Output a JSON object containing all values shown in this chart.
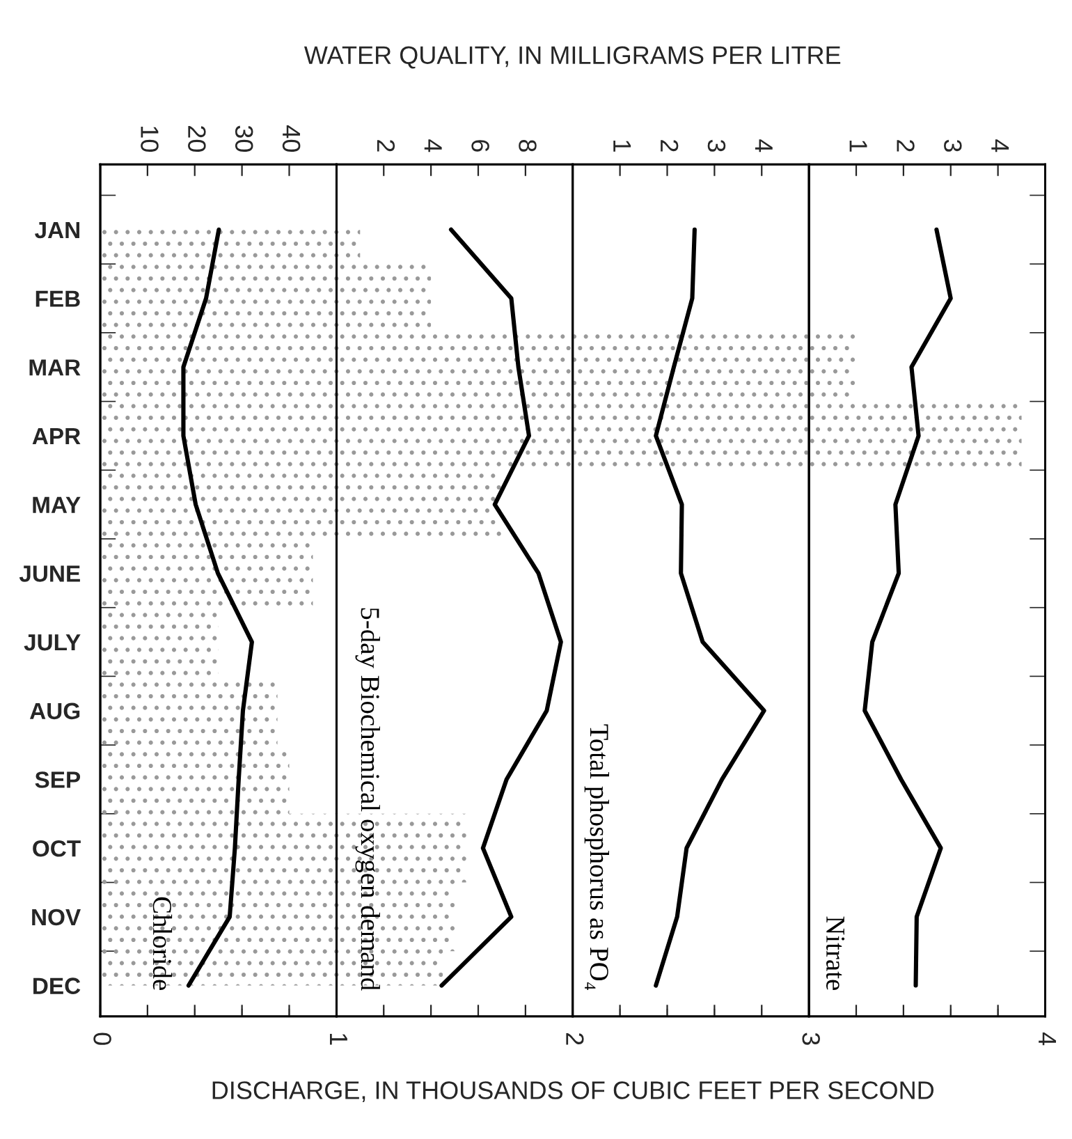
{
  "chart_data": [
    {
      "type": "area",
      "title": "WATER QUALITY, IN MILLIGRAMS PER LITRE",
      "xlabel": "DISCHARGE, IN THOUSANDS OF CUBIC FEET PER SECOND",
      "orientation": "horizontal",
      "categories": [
        "JAN",
        "FEB",
        "MAR",
        "APR",
        "MAY",
        "JUNE",
        "JULY",
        "AUG",
        "SEP",
        "OCT",
        "NOV",
        "DEC"
      ],
      "series": [
        {
          "color": "#999999",
          "values": [
            1.1,
            1.4,
            3.2,
            3.9,
            1.7,
            0.9,
            0.5,
            0.75,
            0.8,
            1.55,
            1.5,
            1.45
          ]
        }
      ],
      "xlim": [
        0,
        4
      ],
      "xticks": [
        0,
        1,
        2,
        3,
        4
      ],
      "grid": "x"
    },
    {
      "type": "line",
      "orientation": "horizontal",
      "tick_labels": "x",
      "series": [
        {
          "name": "Chloride",
          "color": "#000000",
          "values": [
            25.1,
            22.4,
            17.6,
            17.6,
            20.2,
            24.9,
            32.1,
            30.2,
            29.3,
            28.5,
            27.4,
            18.7
          ]
        }
      ],
      "xlim": [
        0,
        50
      ],
      "xticks": [
        10,
        20,
        30,
        40
      ]
    },
    {
      "type": "line",
      "orientation": "horizontal",
      "tick_labels": "x",
      "series": [
        {
          "name": "5-day Biochemical oxygen demand",
          "color": "#000000",
          "values": [
            4.85,
            7.4,
            7.7,
            8.15,
            6.7,
            8.55,
            9.5,
            8.9,
            7.2,
            6.2,
            7.4,
            4.45
          ]
        }
      ],
      "xlim": [
        0,
        10
      ],
      "xticks": [
        2,
        4,
        6,
        8
      ]
    },
    {
      "type": "line",
      "orientation": "horizontal",
      "tick_labels": "x",
      "series": [
        {
          "name": "Total phosphorus as PO₄",
          "color": "#000000",
          "values": [
            2.58,
            2.53,
            2.14,
            1.76,
            2.31,
            2.29,
            2.75,
            4.05,
            3.16,
            2.41,
            2.21,
            1.76
          ]
        }
      ],
      "xlim": [
        0,
        5
      ],
      "xticks": [
        1,
        2,
        3,
        4
      ]
    },
    {
      "type": "line",
      "orientation": "horizontal",
      "tick_labels": "x",
      "series": [
        {
          "name": "Nitrate",
          "color": "#000000",
          "values": [
            2.7,
            3.0,
            2.17,
            2.32,
            1.83,
            1.9,
            1.34,
            1.18,
            1.95,
            2.79,
            2.28,
            2.26
          ]
        }
      ],
      "xlim": [
        0,
        5
      ],
      "xticks": [
        1,
        2,
        3,
        4
      ]
    }
  ]
}
